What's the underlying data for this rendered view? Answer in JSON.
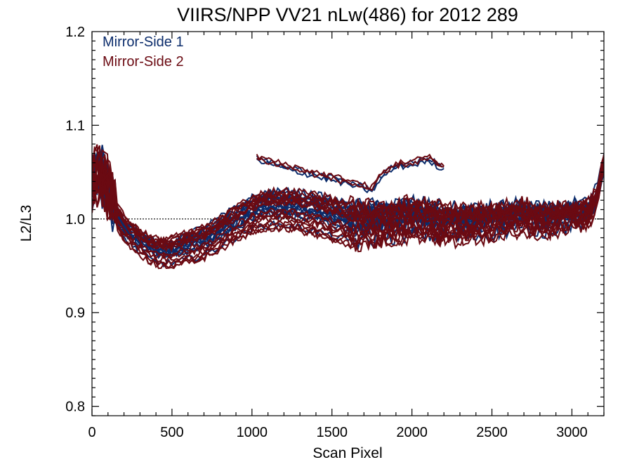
{
  "chart_data": {
    "type": "line",
    "title": "VIIRS/NPP VV21 nLw(486) for 2012 289",
    "xlabel": "Scan Pixel",
    "ylabel": "L2/L3",
    "xlim": [
      0,
      3200
    ],
    "ylim": [
      0.79,
      1.2
    ],
    "xticks": [
      0,
      500,
      1000,
      1500,
      2000,
      2500,
      3000
    ],
    "xtick_labels": [
      "0",
      "500",
      "1000",
      "1500",
      "2000",
      "2500",
      "3000"
    ],
    "yticks": [
      0.8,
      0.9,
      1.0,
      1.1,
      1.2
    ],
    "ytick_labels": [
      "0.8",
      "0.9",
      "1.0",
      "1.1",
      "1.2"
    ],
    "reference_line": 1.0,
    "legend_position": "top-left",
    "series": [
      {
        "name": "Mirror-Side 1",
        "color": "#0b2c6b",
        "line_count": 18
      },
      {
        "name": "Mirror-Side 2",
        "color": "#6b0a12",
        "line_count": 18
      }
    ],
    "profile": {
      "x": [
        0,
        50,
        100,
        200,
        300,
        400,
        500,
        600,
        700,
        800,
        900,
        1000,
        1100,
        1200,
        1300,
        1400,
        1500,
        1600,
        1700,
        1800,
        1900,
        2000,
        2100,
        2200,
        2300,
        2400,
        2500,
        2600,
        2700,
        2800,
        2900,
        3000,
        3100,
        3150,
        3200
      ],
      "y": [
        1.03,
        1.04,
        1.02,
        0.99,
        0.975,
        0.965,
        0.965,
        0.97,
        0.975,
        0.985,
        0.995,
        1.005,
        1.01,
        1.01,
        1.008,
        1.005,
        1.0,
        0.995,
        0.993,
        0.995,
        0.997,
        1.0,
        0.998,
        0.996,
        0.994,
        0.995,
        0.997,
        1.0,
        1.002,
        0.998,
        1.0,
        1.003,
        1.005,
        1.02,
        1.06
      ]
    },
    "upper_segment": {
      "x": [
        1030,
        1200,
        1400,
        1600,
        1750,
        1800,
        1900,
        2000,
        2100,
        2200
      ],
      "y": [
        1.065,
        1.057,
        1.048,
        1.04,
        1.032,
        1.045,
        1.058,
        1.06,
        1.065,
        1.055
      ]
    }
  }
}
